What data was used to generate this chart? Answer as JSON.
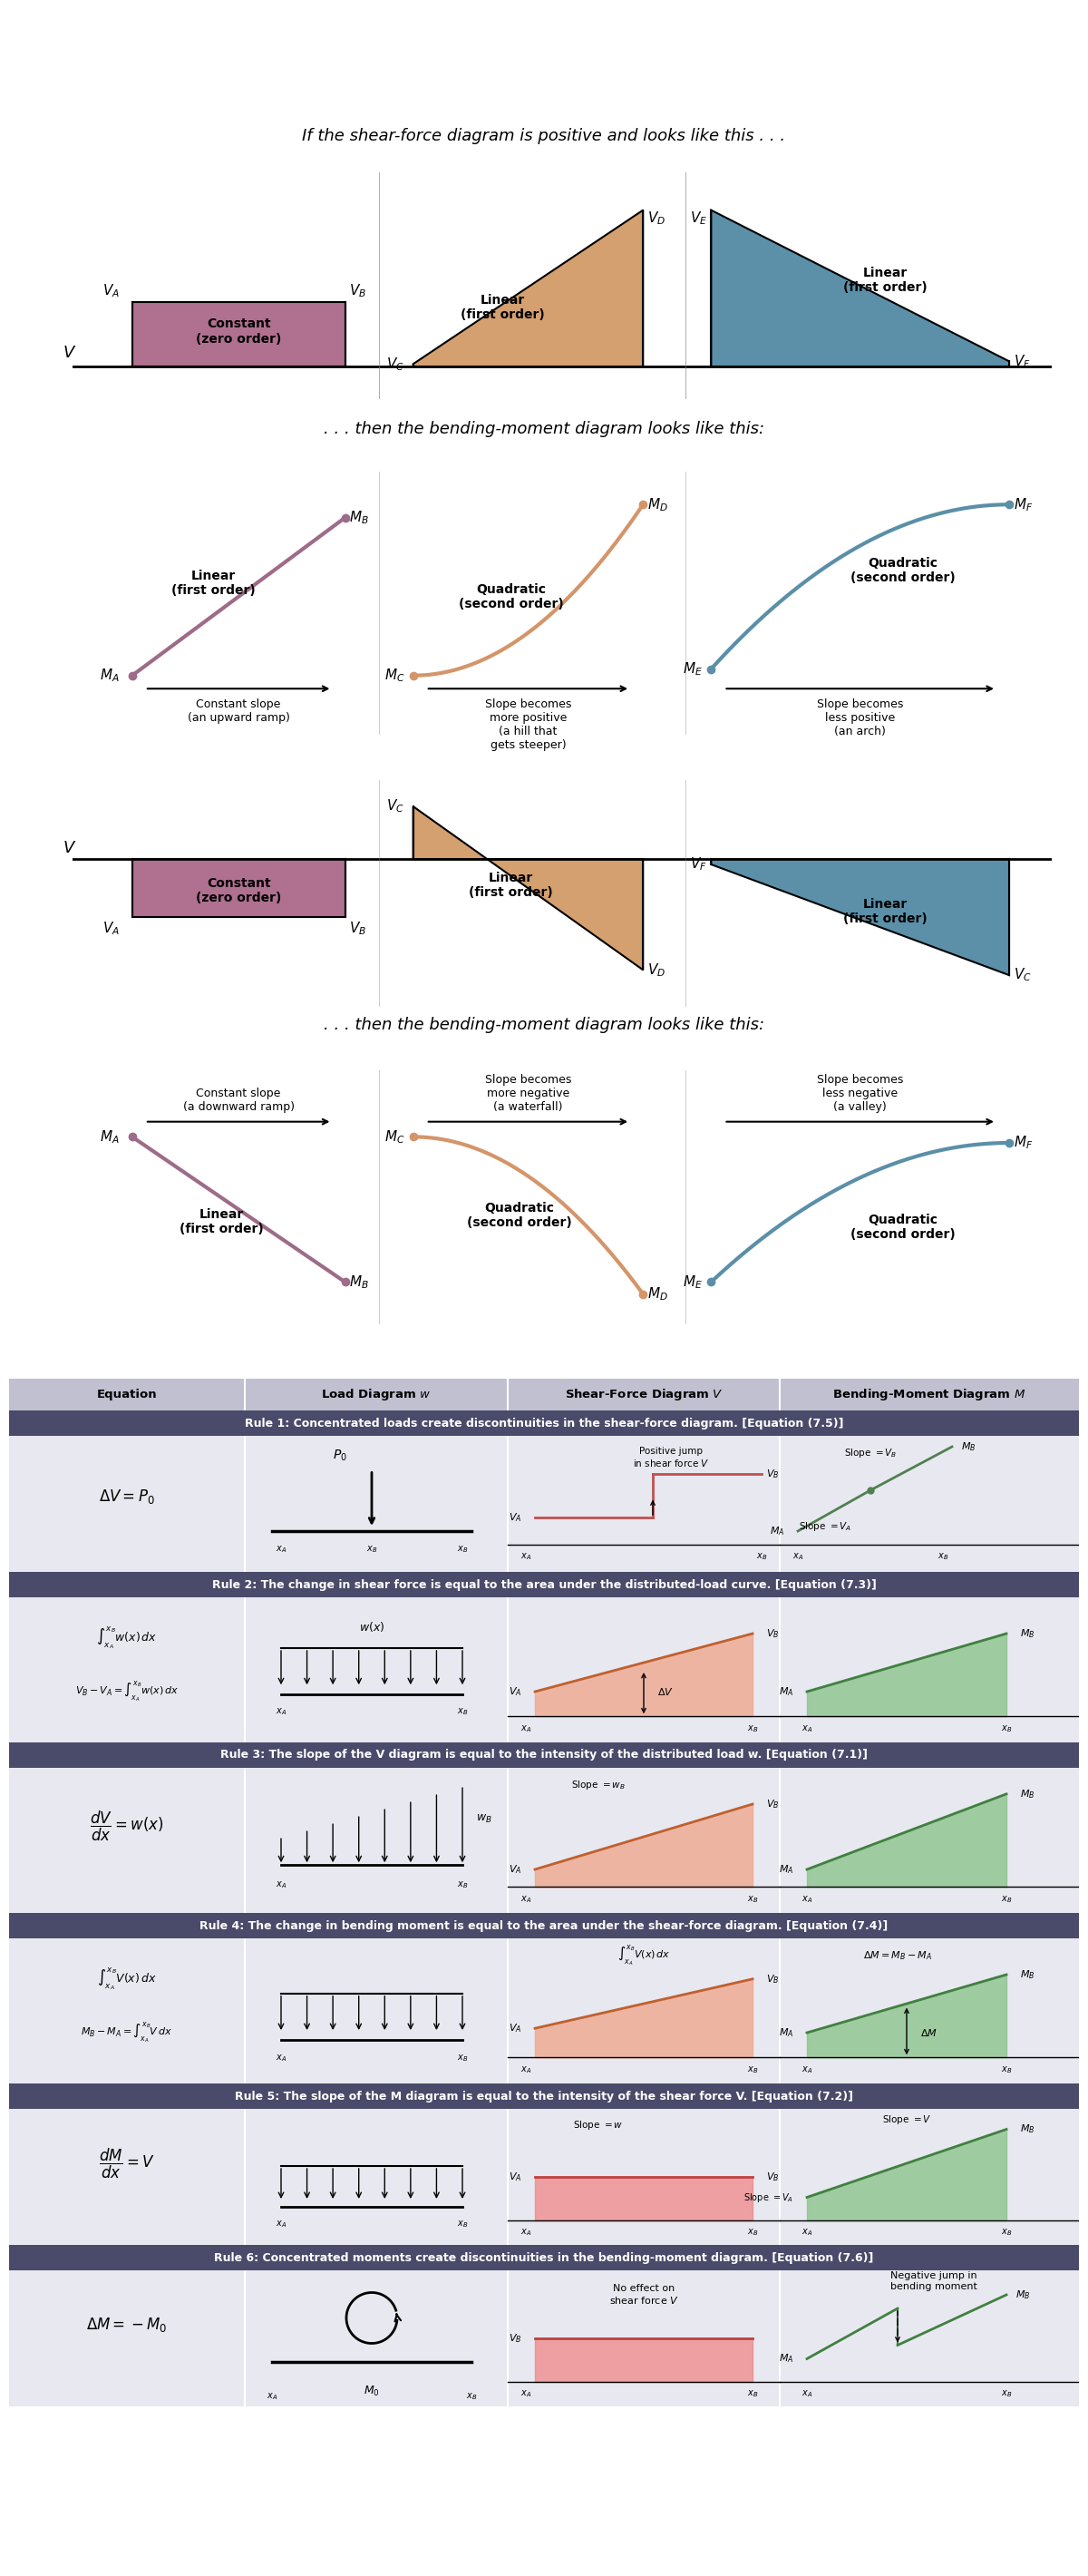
{
  "bg_color": "#ffffff",
  "dark_text": "#1a1a1a",
  "purple_color": "#9e6b8a",
  "orange_color": "#d4956a",
  "blue_color": "#5b8fa8",
  "pink_fill": "#b07090",
  "orange_fill": "#d4a070",
  "blue_fill": "#5b90a8",
  "rule_header_bg": "#4a4a6a",
  "rule_row_bg": "#e8e8f0",
  "col_header_bg": "#c0c0d0",
  "shear_red": "#d08080",
  "moment_green": "#80a080",
  "load_green": "#408040",
  "load_orange": "#c06030"
}
